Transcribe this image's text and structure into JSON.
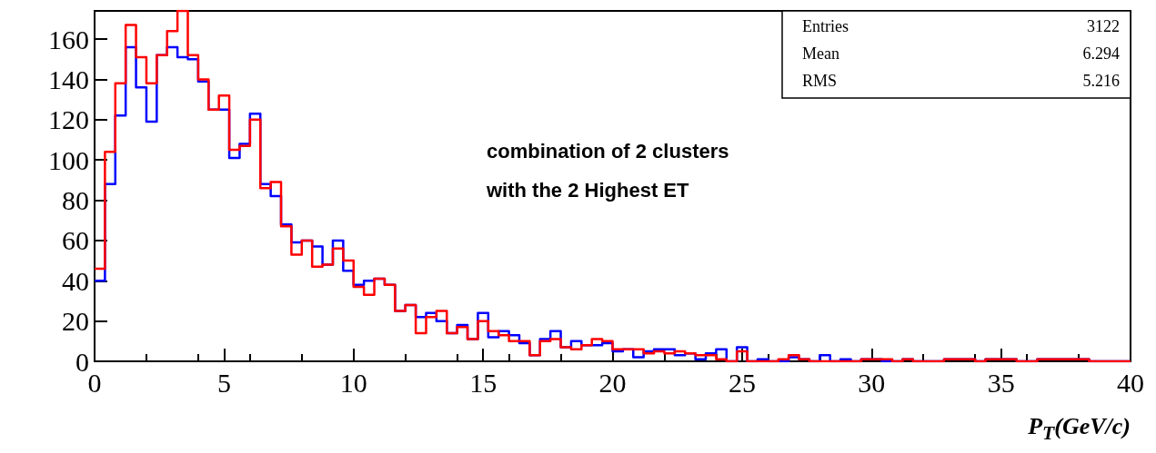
{
  "chart_data": {
    "type": "histogram",
    "xlabel": "P$_{T}$(GeV/c)",
    "bins": [
      0,
      0.4,
      0.8,
      1.2,
      1.6,
      2,
      2.4,
      2.8,
      3.2,
      3.6,
      4,
      4.4,
      4.8,
      5.2,
      5.6,
      6,
      6.4,
      6.8,
      7.2,
      7.6,
      8,
      8.4,
      8.8,
      9.2,
      9.6,
      10,
      10.4,
      10.8,
      11.2,
      11.6,
      12,
      12.4,
      12.8,
      13.2,
      13.6,
      14,
      14.4,
      14.8,
      15.2,
      15.6,
      16,
      16.4,
      16.8,
      17.2,
      17.6,
      18,
      18.4,
      18.8,
      19.2,
      19.6,
      20,
      20.4,
      20.8,
      21.2,
      21.6,
      22,
      22.4,
      22.8,
      23.2,
      23.6,
      24,
      24.4,
      24.8,
      25.2,
      25.6,
      26,
      26.4,
      26.8,
      27.2,
      27.6,
      28,
      28.4,
      28.8,
      29.2,
      29.6,
      30,
      30.4,
      30.8,
      31.2,
      31.6,
      32,
      32.4,
      32.8,
      33.2,
      33.6,
      34,
      34.4,
      34.8,
      35.2,
      35.6,
      36,
      36.4,
      36.8,
      37.2,
      37.6,
      38,
      38.4,
      38.8,
      39.2,
      39.6,
      40
    ],
    "series": [
      {
        "color": "#0000ff",
        "values": [
          40,
          88,
          122,
          156,
          136,
          119,
          152,
          156,
          151,
          150,
          139,
          125,
          125,
          101,
          108,
          123,
          88,
          82,
          68,
          59,
          60,
          57,
          48,
          60,
          45,
          38,
          40,
          41,
          38,
          25,
          28,
          22,
          24,
          20,
          14,
          18,
          11,
          24,
          12,
          15,
          13,
          9,
          3,
          11,
          15,
          7,
          10,
          8,
          8,
          9,
          5,
          6,
          2,
          5,
          6,
          6,
          3,
          4,
          1,
          4,
          6,
          0,
          7,
          0,
          1,
          0,
          0,
          2,
          1,
          0,
          3,
          0,
          1,
          0,
          1,
          1,
          0,
          0,
          1,
          0,
          0,
          0,
          1,
          1,
          1,
          0,
          1,
          1,
          1,
          0,
          0,
          1,
          1,
          1,
          1,
          1,
          0,
          0,
          0,
          0
        ]
      },
      {
        "color": "#ff0000",
        "values": [
          46,
          104,
          138,
          167,
          151,
          138,
          152,
          164,
          174,
          152,
          140,
          125,
          132,
          105,
          107,
          120,
          86,
          89,
          67,
          53,
          60,
          47,
          48,
          56,
          50,
          37,
          33,
          41,
          38,
          25,
          28,
          14,
          22,
          25,
          14,
          17,
          11,
          20,
          15,
          13,
          10,
          10,
          3,
          10,
          11,
          7,
          6,
          8,
          11,
          10,
          6,
          6,
          6,
          4,
          5,
          4,
          5,
          4,
          3,
          3,
          1,
          0,
          5,
          0,
          0,
          0,
          1,
          3,
          1,
          0,
          0,
          0,
          0,
          0,
          1,
          1,
          1,
          0,
          1,
          0,
          0,
          0,
          1,
          1,
          1,
          0,
          1,
          1,
          1,
          0,
          0,
          1,
          1,
          1,
          1,
          1,
          0,
          0,
          0,
          0
        ]
      }
    ],
    "xlim": [
      0,
      40
    ],
    "xticks": [
      0,
      5,
      10,
      15,
      20,
      25,
      30,
      35,
      40
    ],
    "ylim": [
      0,
      174
    ],
    "yticks": [
      0,
      20,
      40,
      60,
      80,
      100,
      120,
      140,
      160
    ],
    "grid": false,
    "annotations": [
      "combination of 2 clusters",
      "with the 2 Highest ET",
      "Entries",
      "3122",
      "Mean",
      "6.294",
      "RMS",
      "5.216"
    ]
  }
}
